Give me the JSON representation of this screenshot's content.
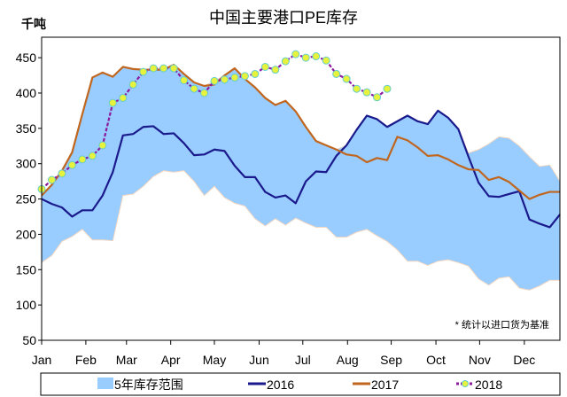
{
  "chart_data": {
    "type": "line",
    "title": "中国主要港口PE库存",
    "ylabel": "千吨",
    "xlabel": "",
    "note": "* 统计以进口货为基准",
    "ylim": [
      50,
      479
    ],
    "yticks": [
      50,
      100,
      150,
      200,
      250,
      300,
      350,
      400,
      450
    ],
    "x_unit": "week",
    "xlim": [
      0,
      51
    ],
    "xticks": [
      {
        "label": "Jan",
        "week": 0
      },
      {
        "label": "Feb",
        "week": 4.35
      },
      {
        "label": "Mar",
        "week": 8.35
      },
      {
        "label": "Apr",
        "week": 12.7
      },
      {
        "label": "May",
        "week": 17.0
      },
      {
        "label": "Jun",
        "week": 21.4
      },
      {
        "label": "Jul",
        "week": 25.7
      },
      {
        "label": "Aug",
        "week": 30.1
      },
      {
        "label": "Sep",
        "week": 34.4
      },
      {
        "label": "Oct",
        "week": 38.8
      },
      {
        "label": "Nov",
        "week": 43.1
      },
      {
        "label": "Dec",
        "week": 47.5
      }
    ],
    "grid": false,
    "legend_position": "bottom",
    "band": {
      "name": "5年库存范围",
      "color": "#99ccff",
      "upper": [
        255,
        270,
        290,
        316,
        370,
        422,
        429,
        423,
        437,
        434,
        433,
        435,
        435,
        440,
        427,
        415,
        410,
        417,
        425,
        435,
        420,
        408,
        393,
        383,
        389,
        374,
        352,
        332,
        326,
        320,
        326,
        348,
        368,
        363,
        352,
        360,
        368,
        360,
        356,
        375,
        365,
        349,
        315,
        320,
        328,
        338,
        336,
        325,
        310,
        296,
        298,
        275
      ],
      "lower": [
        160,
        170,
        190,
        197,
        207,
        192,
        192,
        191,
        255,
        257,
        268,
        282,
        290,
        288,
        290,
        275,
        255,
        268,
        252,
        244,
        240,
        222,
        212,
        222,
        213,
        223,
        216,
        210,
        210,
        196,
        196,
        203,
        207,
        198,
        190,
        178,
        162,
        162,
        156,
        162,
        164,
        160,
        155,
        137,
        128,
        138,
        140,
        124,
        121,
        127,
        135,
        135
      ]
    },
    "series": [
      {
        "name": "2016",
        "color": "#1a1a8c",
        "values": [
          250,
          243,
          238,
          225,
          234,
          234,
          255,
          288,
          340,
          342,
          352,
          353,
          342,
          343,
          329,
          312,
          313,
          320,
          318,
          297,
          281,
          281,
          260,
          252,
          255,
          244,
          275,
          289,
          288,
          311,
          326,
          348,
          368,
          363,
          352,
          360,
          368,
          360,
          356,
          375,
          365,
          349,
          310,
          273,
          254,
          253,
          257,
          261,
          221,
          215,
          210,
          228
        ]
      },
      {
        "name": "2017",
        "color": "#c0661e",
        "values": [
          255,
          270,
          290,
          316,
          370,
          422,
          429,
          423,
          437,
          434,
          433,
          433,
          433,
          440,
          427,
          415,
          410,
          412,
          425,
          435,
          420,
          408,
          393,
          383,
          389,
          374,
          352,
          332,
          326,
          320,
          313,
          311,
          302,
          308,
          305,
          338,
          333,
          323,
          311,
          312,
          306,
          298,
          292,
          291,
          277,
          281,
          274,
          262,
          250,
          256,
          260,
          260
        ]
      },
      {
        "name": "2018",
        "color": "#8b1a9c",
        "marker_color": "#e6f23c",
        "marker_edge": "#66cccc",
        "values": [
          264,
          277,
          286,
          298,
          306,
          311,
          326,
          386,
          393,
          412,
          430,
          435,
          435,
          435,
          418,
          406,
          400,
          417,
          419,
          422,
          424,
          427,
          437,
          433,
          445,
          455,
          450,
          452,
          446,
          427,
          420,
          406,
          401,
          394,
          406
        ]
      }
    ]
  }
}
